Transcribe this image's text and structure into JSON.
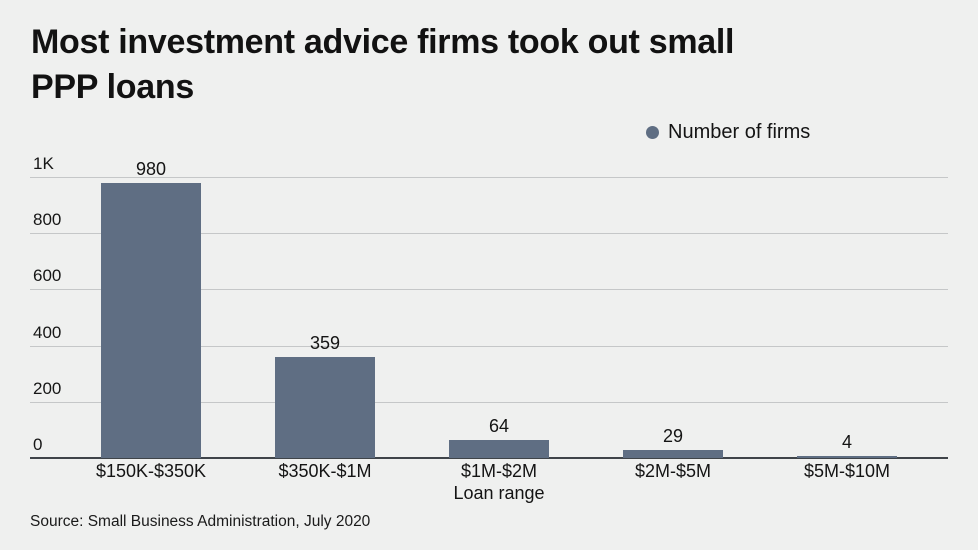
{
  "title_lines": [
    "Most investment advice firms took out small",
    "PPP loans"
  ],
  "legend": {
    "label": "Number of firms",
    "marker_color": "#5f6e83"
  },
  "source": "Source: Small Business Administration, July 2020",
  "chart_data": {
    "type": "bar",
    "title": "Most investment advice firms took out small PPP loans",
    "series_name": "Number of firms",
    "categories": [
      "$150K-$350K",
      "$350K-$1M",
      "$1M-$2M",
      "$2M-$5M",
      "$5M-$10M"
    ],
    "values": [
      980,
      359,
      64,
      29,
      4
    ],
    "xlabel": "Loan range",
    "ylabel": "",
    "ylim": [
      0,
      1000
    ],
    "ytick_values": [
      0,
      200,
      400,
      600,
      800,
      1000
    ],
    "ytick_labels": [
      "0",
      "200",
      "400",
      "600",
      "800",
      "1K"
    ],
    "grid": "horizontal",
    "legend_position": "top-right",
    "bar_color": "#5f6e83",
    "background_color": "#eff0ef",
    "gridline_color": "#c5c7c8",
    "axis_line_color": "#3f4449"
  }
}
